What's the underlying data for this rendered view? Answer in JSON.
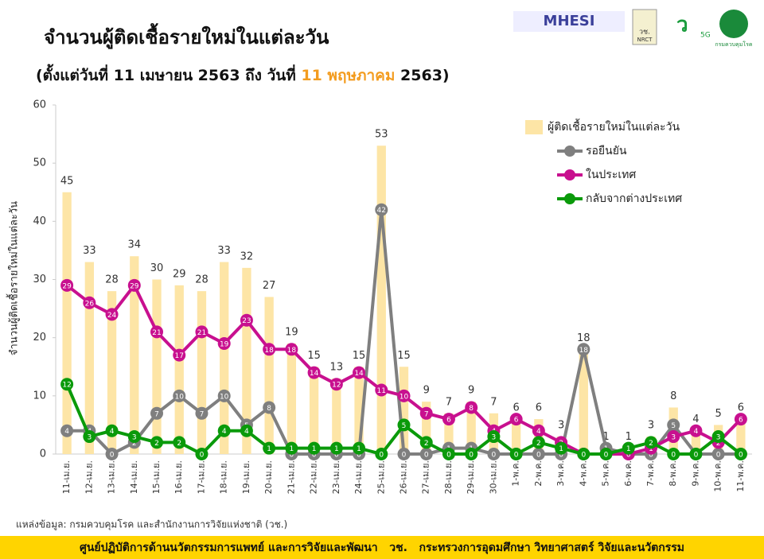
{
  "header": {
    "logos": [
      "MHESI",
      "วช.",
      "NRCT",
      "5G",
      "กรมควบคุมโรค"
    ]
  },
  "chart_data": {
    "type": "combo",
    "title": "จำนวนผู้ติดเชื้อรายใหม่ในแต่ละวัน",
    "subtitle": [
      "(ตั้งแต่วันที่ 11 เมษายน 2563 ถึง วันที่ ",
      "11 พฤษภาคม",
      " 2563)"
    ],
    "subtitle_highlight_color": "#f39c1f",
    "y_label": "จำนวนผู้ติดเชื้อรายใหม่ในแต่ละวัน",
    "categories": [
      "11-เม.ย.",
      "12-เม.ย.",
      "13-เม.ย.",
      "14-เม.ย.",
      "15-เม.ย.",
      "16-เม.ย.",
      "17-เม.ย.",
      "18-เม.ย.",
      "19-เม.ย.",
      "20-เม.ย.",
      "21-เม.ย.",
      "22-เม.ย.",
      "23-เม.ย.",
      "24-เม.ย.",
      "25-เม.ย.",
      "26-เม.ย.",
      "27-เม.ย.",
      "28-เม.ย.",
      "29-เม.ย.",
      "30-เม.ย.",
      "1-พ.ค.",
      "2-พ.ค.",
      "3-พ.ค.",
      "4-พ.ค.",
      "5-พ.ค.",
      "6-พ.ค.",
      "7-พ.ค.",
      "8-พ.ค.",
      "9-พ.ค.",
      "10-พ.ค.",
      "11-พ.ค."
    ],
    "series": [
      {
        "name": "ผู้ติดเชื้อรายใหม่ในแต่ละวัน",
        "type": "bar",
        "color": "#fde5a6",
        "values": [
          45,
          33,
          28,
          34,
          30,
          29,
          28,
          33,
          32,
          27,
          19,
          15,
          13,
          15,
          53,
          15,
          9,
          7,
          9,
          7,
          6,
          6,
          3,
          18,
          1,
          1,
          3,
          8,
          4,
          5,
          6
        ]
      },
      {
        "name": "รอยืนยัน",
        "type": "line",
        "color": "#7f7f7f",
        "values": [
          4,
          4,
          0,
          2,
          7,
          10,
          7,
          10,
          5,
          8,
          0,
          0,
          0,
          0,
          42,
          0,
          0,
          1,
          1,
          0,
          0,
          0,
          0,
          18,
          1,
          0,
          0,
          5,
          0,
          0,
          0
        ]
      },
      {
        "name": "ในประเทศ",
        "type": "line",
        "color": "#c8108f",
        "values": [
          29,
          26,
          24,
          29,
          21,
          17,
          21,
          19,
          23,
          18,
          18,
          14,
          12,
          14,
          11,
          10,
          7,
          6,
          8,
          4,
          6,
          4,
          2,
          0,
          0,
          0,
          1,
          3,
          4,
          2,
          6
        ]
      },
      {
        "name": "กลับจากต่างประเทศ",
        "type": "line",
        "color": "#0a9a0a",
        "values": [
          12,
          3,
          4,
          3,
          2,
          2,
          0,
          4,
          4,
          1,
          1,
          1,
          1,
          1,
          0,
          5,
          2,
          0,
          0,
          3,
          0,
          2,
          1,
          0,
          0,
          1,
          2,
          0,
          0,
          3,
          0
        ]
      }
    ],
    "ylim": [
      0,
      60
    ],
    "yticks": [
      0,
      10,
      20,
      30,
      40,
      50,
      60
    ],
    "grid": false,
    "source": "แหล่งข้อมูล: กรมควบคุมโรค และสำนักงานการวิจัยแห่งชาติ (วช.)",
    "banner": "ศูนย์ปฏิบัติการด้านนวัตกรรมการแพทย์ และการวิจัยและพัฒนา   วช.   กระทรวงการอุดมศึกษา วิทยาศาสตร์ วิจัยและนวัตกรรม"
  }
}
